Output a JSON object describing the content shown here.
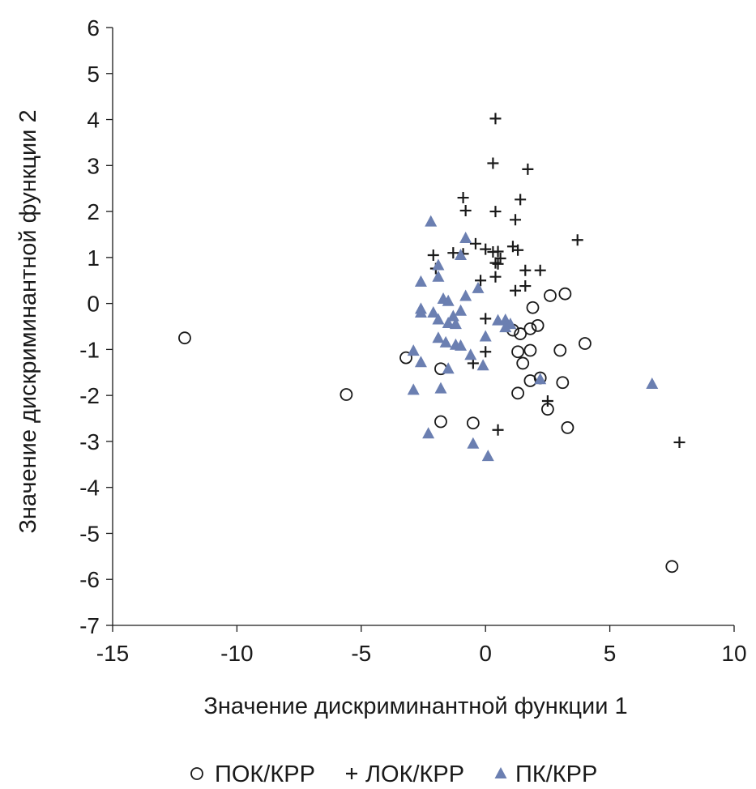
{
  "chart_data": {
    "type": "scatter",
    "title": "",
    "xlabel": "Значение дискриминантной функции 1",
    "ylabel": "Значение дискриминантной функции 2",
    "xlim": [
      -15,
      10
    ],
    "ylim": [
      -7,
      6
    ],
    "x_ticks": [
      -15,
      -10,
      -5,
      0,
      5,
      10
    ],
    "y_ticks": [
      6,
      5,
      4,
      3,
      2,
      1,
      0,
      -1,
      -2,
      -3,
      -4,
      -5,
      -6,
      -7
    ],
    "grid": false,
    "legend_position": "bottom",
    "series": [
      {
        "name": "ПОК/КРР",
        "marker": "circle",
        "color": "#1a1a1a",
        "points": [
          [
            -12.1,
            -0.75
          ],
          [
            -5.6,
            -1.98
          ],
          [
            -3.2,
            -1.18
          ],
          [
            -1.8,
            -1.42
          ],
          [
            -1.8,
            -2.57
          ],
          [
            -0.5,
            -2.6
          ],
          [
            1.1,
            -0.58
          ],
          [
            1.4,
            -0.66
          ],
          [
            1.8,
            -0.55
          ],
          [
            2.1,
            -0.48
          ],
          [
            1.9,
            -0.09
          ],
          [
            2.6,
            0.17
          ],
          [
            3.2,
            0.21
          ],
          [
            1.3,
            -1.05
          ],
          [
            1.8,
            -1.02
          ],
          [
            3.0,
            -1.02
          ],
          [
            4.0,
            -0.87
          ],
          [
            1.5,
            -1.3
          ],
          [
            1.8,
            -1.68
          ],
          [
            2.2,
            -1.62
          ],
          [
            3.1,
            -1.72
          ],
          [
            1.3,
            -1.95
          ],
          [
            2.5,
            -2.3
          ],
          [
            3.3,
            -2.7
          ],
          [
            7.5,
            -5.72
          ]
        ]
      },
      {
        "name": "ЛОК/КРР",
        "marker": "plus",
        "color": "#1a1a1a",
        "points": [
          [
            0.4,
            4.02
          ],
          [
            0.3,
            3.05
          ],
          [
            1.7,
            2.92
          ],
          [
            -0.9,
            2.3
          ],
          [
            1.4,
            2.26
          ],
          [
            -0.8,
            2.02
          ],
          [
            0.4,
            2.0
          ],
          [
            1.2,
            1.82
          ],
          [
            3.7,
            1.38
          ],
          [
            -0.4,
            1.3
          ],
          [
            0.0,
            1.18
          ],
          [
            0.3,
            1.12
          ],
          [
            0.5,
            1.13
          ],
          [
            1.1,
            1.24
          ],
          [
            1.3,
            1.16
          ],
          [
            -2.1,
            1.05
          ],
          [
            -1.3,
            1.1
          ],
          [
            -0.9,
            1.08
          ],
          [
            0.6,
            0.98
          ],
          [
            0.4,
            0.88
          ],
          [
            0.5,
            0.86
          ],
          [
            1.6,
            0.72
          ],
          [
            2.2,
            0.72
          ],
          [
            -2.0,
            0.76
          ],
          [
            0.4,
            0.58
          ],
          [
            -0.2,
            0.5
          ],
          [
            1.6,
            0.38
          ],
          [
            1.2,
            0.28
          ],
          [
            0.0,
            -0.33
          ],
          [
            0.0,
            -1.05
          ],
          [
            -0.5,
            -1.3
          ],
          [
            2.5,
            -2.12
          ],
          [
            0.5,
            -2.75
          ],
          [
            7.8,
            -3.02
          ]
        ]
      },
      {
        "name": "ПК/КРР",
        "marker": "triangle",
        "color": "#6b7fb1",
        "points": [
          [
            -2.2,
            1.78
          ],
          [
            -0.8,
            1.42
          ],
          [
            -1.0,
            1.05
          ],
          [
            -1.9,
            0.83
          ],
          [
            -2.6,
            0.47
          ],
          [
            -1.9,
            0.58
          ],
          [
            -0.3,
            0.33
          ],
          [
            -0.8,
            0.16
          ],
          [
            -1.7,
            0.1
          ],
          [
            -1.5,
            0.05
          ],
          [
            -2.6,
            -0.12
          ],
          [
            -2.6,
            -0.2
          ],
          [
            -2.1,
            -0.2
          ],
          [
            -1.0,
            -0.16
          ],
          [
            -1.9,
            -0.35
          ],
          [
            -1.3,
            -0.28
          ],
          [
            -1.5,
            -0.43
          ],
          [
            -1.2,
            -0.45
          ],
          [
            0.5,
            -0.37
          ],
          [
            0.8,
            -0.36
          ],
          [
            1.0,
            -0.45
          ],
          [
            0.8,
            -0.52
          ],
          [
            -1.9,
            -0.75
          ],
          [
            0.0,
            -0.72
          ],
          [
            -1.6,
            -0.85
          ],
          [
            -1.2,
            -0.9
          ],
          [
            -1.0,
            -0.92
          ],
          [
            -2.9,
            -1.03
          ],
          [
            -0.6,
            -1.12
          ],
          [
            -2.6,
            -1.28
          ],
          [
            -0.1,
            -1.35
          ],
          [
            -1.5,
            -1.42
          ],
          [
            2.2,
            -1.65
          ],
          [
            6.7,
            -1.75
          ],
          [
            -1.8,
            -1.85
          ],
          [
            -2.9,
            -1.88
          ],
          [
            -2.3,
            -2.83
          ],
          [
            -0.5,
            -3.05
          ],
          [
            0.1,
            -3.32
          ]
        ]
      }
    ]
  }
}
